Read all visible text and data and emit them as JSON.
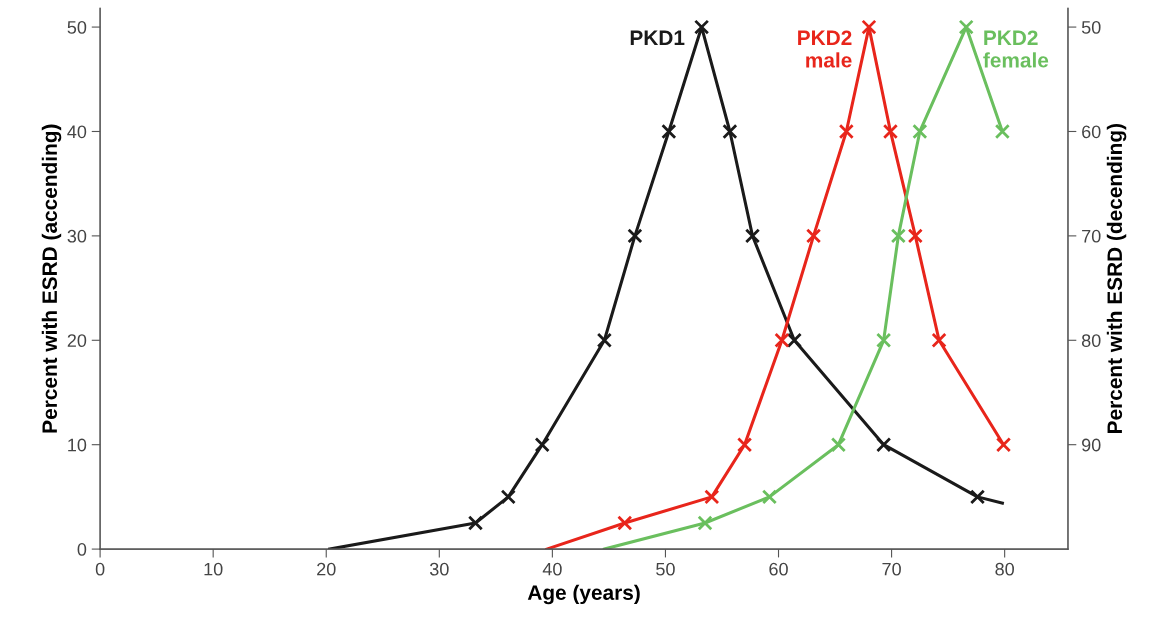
{
  "chart_data": {
    "type": "line",
    "xlabel": "Age (years)",
    "ylabel": "Percent with ESRD (accending)",
    "y2label": "Percent with ESRD (decending)",
    "xlim": [
      0,
      85.6
    ],
    "xticks": [
      0,
      10,
      20,
      30,
      40,
      50,
      60,
      70,
      80
    ],
    "ylim": [
      0,
      51.8
    ],
    "yticks": [
      0,
      10,
      20,
      30,
      40,
      50
    ],
    "y2lim": [
      100,
      48.2
    ],
    "y2ticks": [
      50,
      60,
      70,
      80,
      90
    ],
    "grid": false,
    "legend": false,
    "series": [
      {
        "name": "PKD1",
        "color": "#1a1a1a",
        "marker": "none",
        "x": [
          20.3,
          33.2,
          36.1,
          39.1,
          44.6,
          47.3,
          50.3,
          53.2,
          55.7,
          57.7,
          61.4,
          69.3,
          77.6,
          79.8
        ],
        "values": [
          0,
          2.5,
          5,
          10,
          20,
          30,
          40,
          50,
          40,
          30,
          20,
          10,
          5,
          4.4
        ]
      },
      {
        "name": "PKD2\nmale",
        "color": "#e8251b",
        "marker": "none",
        "x": [
          39.5,
          46.4,
          54.1,
          57.0,
          60.3,
          63.1,
          66.0,
          68.0,
          69.9,
          72.1,
          74.2,
          79.9
        ],
        "values": [
          0,
          2.5,
          5,
          10,
          20,
          30,
          40,
          50,
          40,
          30,
          20,
          10
        ]
      },
      {
        "name": "PKD2\nfemale",
        "color": "#6abf5e",
        "marker": "none",
        "x": [
          44.6,
          53.5,
          59.2,
          65.3,
          69.3,
          70.6,
          72.5,
          76.6,
          79.8
        ],
        "values": [
          0,
          2.5,
          5,
          10,
          20,
          30,
          40,
          50,
          40
        ]
      },
      {
        "type": "scatter",
        "color": "#1a1a1a",
        "marker": "cross",
        "x": [
          33.2,
          36.1,
          39.1,
          44.6,
          47.3,
          50.3,
          53.2,
          55.7,
          57.7,
          61.4,
          69.3,
          77.6
        ],
        "values": [
          2.5,
          5,
          10,
          20,
          30,
          40,
          50,
          40,
          30,
          20,
          10,
          5
        ]
      },
      {
        "type": "scatter",
        "color": "#e8251b",
        "marker": "cross",
        "x": [
          46.4,
          54.1,
          57.0,
          60.3,
          63.1,
          66.0,
          68.0,
          69.9,
          72.1,
          74.2,
          79.9
        ],
        "values": [
          2.5,
          5,
          10,
          20,
          30,
          40,
          50,
          40,
          30,
          20,
          10
        ]
      },
      {
        "type": "scatter",
        "color": "#6abf5e",
        "marker": "cross",
        "x": [
          53.5,
          59.2,
          65.3,
          69.3,
          70.6,
          72.5,
          76.6,
          79.8
        ],
        "values": [
          2.5,
          5,
          10,
          20,
          30,
          40,
          50,
          40
        ]
      }
    ]
  }
}
